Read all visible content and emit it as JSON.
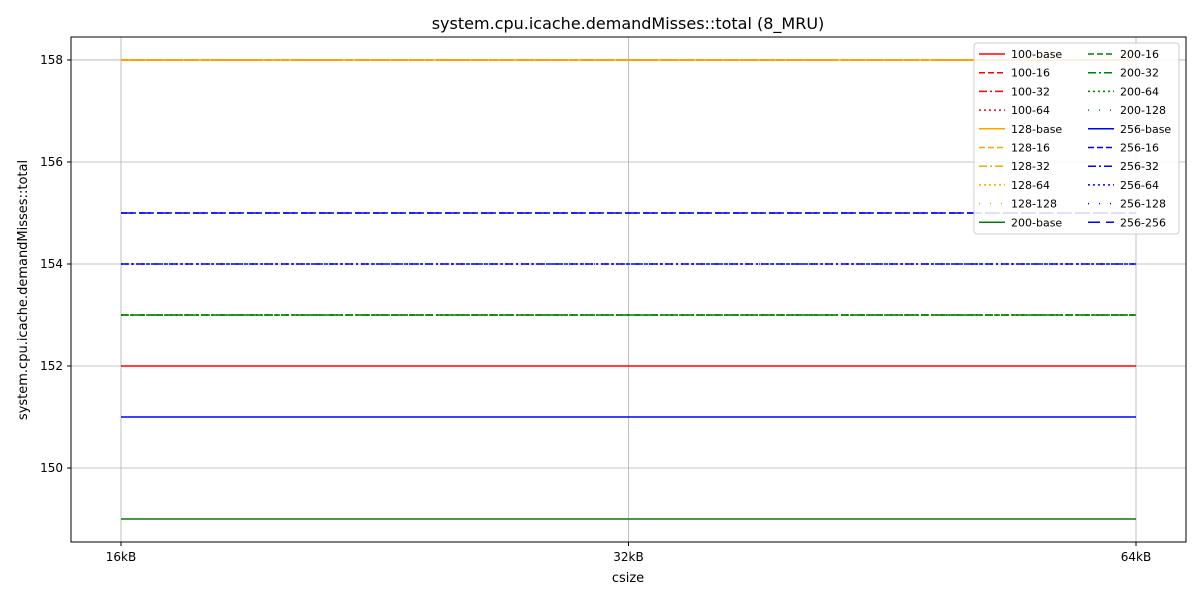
{
  "chart_data": {
    "type": "line",
    "title": "system.cpu.icache.demandMisses::total (8_MRU)",
    "xlabel": "csize",
    "ylabel": "system.cpu.icache.demandMisses::total",
    "x": [
      "16kB",
      "32kB",
      "64kB"
    ],
    "ylim": [
      148.55,
      158.45
    ],
    "yticks": [
      150,
      152,
      154,
      156,
      158
    ],
    "grid": true,
    "legend_position": "top-right",
    "legend_columns": 2,
    "series": [
      {
        "name": "100-base",
        "color": "#ff0000",
        "dash": "solid",
        "values": [
          152,
          152,
          152
        ]
      },
      {
        "name": "100-16",
        "color": "#ff0000",
        "dash": "dashed",
        "values": [
          158,
          158,
          158
        ]
      },
      {
        "name": "100-32",
        "color": "#ff0000",
        "dash": "dashdot",
        "values": [
          158,
          158,
          158
        ]
      },
      {
        "name": "100-64",
        "color": "#ff0000",
        "dash": "dotted",
        "values": [
          158,
          158,
          158
        ]
      },
      {
        "name": "128-base",
        "color": "#ffa500",
        "dash": "solid",
        "values": [
          158,
          158,
          158
        ]
      },
      {
        "name": "128-16",
        "color": "#ffa500",
        "dash": "dashed",
        "values": [
          158,
          158,
          158
        ]
      },
      {
        "name": "128-32",
        "color": "#ffa500",
        "dash": "dashdot",
        "values": [
          158,
          158,
          158
        ]
      },
      {
        "name": "128-64",
        "color": "#ffa500",
        "dash": "dotted",
        "values": [
          158,
          158,
          158
        ]
      },
      {
        "name": "128-128",
        "color": "#ffa500",
        "dash": "sparse",
        "values": [
          158,
          158,
          158
        ]
      },
      {
        "name": "200-base",
        "color": "#008000",
        "dash": "solid",
        "values": [
          149,
          149,
          149
        ]
      },
      {
        "name": "200-16",
        "color": "#008000",
        "dash": "dashed",
        "values": [
          153,
          153,
          153
        ]
      },
      {
        "name": "200-32",
        "color": "#008000",
        "dash": "dashdot",
        "values": [
          153,
          153,
          153
        ]
      },
      {
        "name": "200-64",
        "color": "#008000",
        "dash": "dotted",
        "values": [
          153,
          153,
          153
        ]
      },
      {
        "name": "200-128",
        "color": "#008000",
        "dash": "sparse",
        "values": [
          153,
          153,
          153
        ]
      },
      {
        "name": "256-base",
        "color": "#0000ff",
        "dash": "solid",
        "values": [
          151,
          151,
          151
        ]
      },
      {
        "name": "256-16",
        "color": "#0000ff",
        "dash": "dashed",
        "values": [
          155,
          155,
          155
        ]
      },
      {
        "name": "256-32",
        "color": "#0000ff",
        "dash": "dashdot",
        "values": [
          154,
          154,
          154
        ]
      },
      {
        "name": "256-64",
        "color": "#0000ff",
        "dash": "dotted",
        "values": [
          154,
          154,
          154
        ]
      },
      {
        "name": "256-128",
        "color": "#0000ff",
        "dash": "sparse",
        "values": [
          154,
          154,
          154
        ]
      },
      {
        "name": "256-256",
        "color": "#0000ff",
        "dash": "longdash",
        "values": [
          155,
          155,
          155
        ]
      }
    ]
  }
}
